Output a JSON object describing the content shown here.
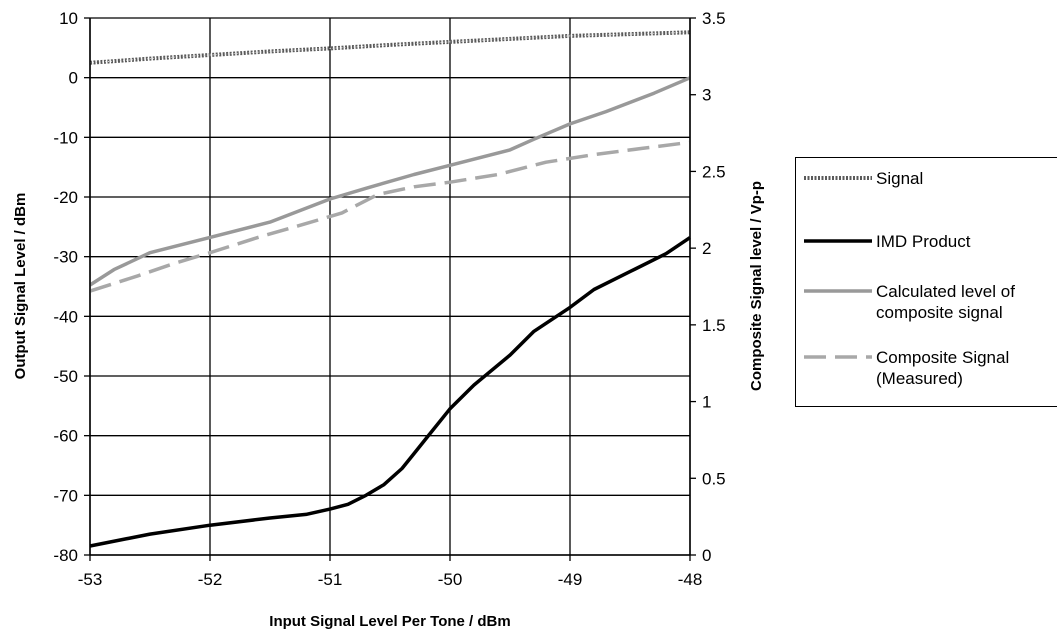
{
  "chart_data": {
    "type": "line",
    "title": "",
    "xlabel": "Input Signal Level Per Tone / dBm",
    "ylabel": "Output Signal Level / dBm",
    "y2label": "Composite Signal level / Vp-p",
    "xlim": [
      -53,
      -48
    ],
    "ylim": [
      -80,
      10
    ],
    "y2lim": [
      0,
      3.5
    ],
    "x_ticks": [
      "-53",
      "-52",
      "-51",
      "-50",
      "-49",
      "-48"
    ],
    "y_ticks": [
      "10",
      "0",
      "-10",
      "-20",
      "-30",
      "-40",
      "-50",
      "-60",
      "-70",
      "-80"
    ],
    "y2_ticks": [
      "3.5",
      "3",
      "2.5",
      "2",
      "1.5",
      "1",
      "0.5",
      "0"
    ],
    "grid": true,
    "legend_position": "right",
    "series": [
      {
        "name": "Signal",
        "axis": "left",
        "style": "dotted-dark",
        "color": "#555555",
        "x": [
          -53,
          -52.5,
          -52,
          -51.5,
          -51,
          -50.5,
          -50,
          -49.5,
          -49,
          -48.5,
          -48
        ],
        "y": [
          2.5,
          3.2,
          3.8,
          4.4,
          4.9,
          5.5,
          6.0,
          6.5,
          7.0,
          7.3,
          7.6
        ]
      },
      {
        "name": "IMD Product",
        "axis": "left",
        "style": "solid-black",
        "color": "#000000",
        "x": [
          -53,
          -52.5,
          -52,
          -51.5,
          -51.2,
          -51,
          -50.85,
          -50.7,
          -50.55,
          -50.4,
          -50.3,
          -50.2,
          -50,
          -49.8,
          -49.5,
          -49.3,
          -49,
          -48.8,
          -48.5,
          -48.2,
          -48
        ],
        "y": [
          -78.5,
          -76.5,
          -75,
          -73.8,
          -73.2,
          -72.3,
          -71.5,
          -70.0,
          -68.2,
          -65.5,
          -63.0,
          -60.5,
          -55.5,
          -51.5,
          -46.5,
          -42.5,
          -38.5,
          -35.5,
          -32.5,
          -29.5,
          -26.8
        ]
      },
      {
        "name": "Calculated level of composite signal",
        "axis": "right",
        "style": "solid-gray",
        "color": "#999999",
        "x": [
          -53,
          -52.8,
          -52.5,
          -52,
          -51.5,
          -51,
          -50.7,
          -50.3,
          -50,
          -49.5,
          -49.3,
          -49,
          -48.7,
          -48.3,
          -48
        ],
        "y": [
          1.76,
          1.86,
          1.97,
          2.07,
          2.17,
          2.32,
          2.39,
          2.48,
          2.54,
          2.64,
          2.71,
          2.81,
          2.89,
          3.01,
          3.11
        ]
      },
      {
        "name": "Composite Signal (Measured)",
        "axis": "right",
        "style": "dashed-gray",
        "color": "#aaaaaa",
        "x": [
          -53,
          -52.6,
          -52.3,
          -52,
          -51.6,
          -51.2,
          -50.9,
          -50.6,
          -50.3,
          -50,
          -49.6,
          -49.2,
          -48.8,
          -48.4,
          -48
        ],
        "y": [
          1.72,
          1.82,
          1.9,
          1.97,
          2.07,
          2.16,
          2.23,
          2.35,
          2.4,
          2.43,
          2.48,
          2.56,
          2.61,
          2.65,
          2.69
        ]
      }
    ]
  },
  "legend": {
    "items": [
      {
        "label": "Signal",
        "style": "dotted-dark"
      },
      {
        "label": "IMD Product",
        "style": "solid-black"
      },
      {
        "label": "Calculated level of\ncomposite signal",
        "style": "solid-gray"
      },
      {
        "label": "Composite Signal\n(Measured)",
        "style": "dashed-gray"
      }
    ]
  }
}
